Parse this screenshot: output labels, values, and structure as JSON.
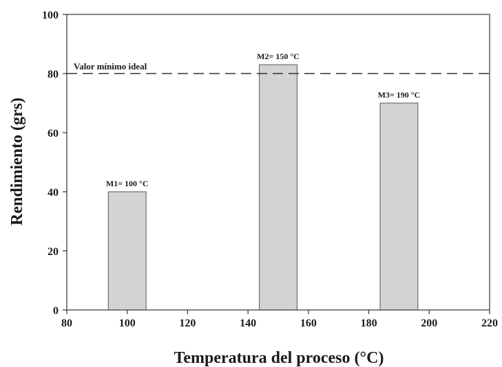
{
  "chart_data": {
    "type": "bar",
    "xlabel": "Temperatura del proceso (°C)",
    "ylabel": "Rendimiento (grs)",
    "xlim": [
      80,
      220
    ],
    "ylim": [
      0,
      100
    ],
    "x_ticks": [
      80,
      100,
      120,
      140,
      160,
      180,
      200,
      220
    ],
    "y_ticks": [
      0,
      20,
      40,
      60,
      80,
      100
    ],
    "bar_width": 12.5,
    "bars": [
      {
        "x": 100,
        "value": 40,
        "label": "M1= 100 °C"
      },
      {
        "x": 150,
        "value": 83,
        "label": "M2= 150 °C"
      },
      {
        "x": 190,
        "value": 70,
        "label": "M3= 190 °C"
      }
    ],
    "reference_line": {
      "value": 80,
      "label": "Valor mínimo ideal",
      "style": "dashed"
    },
    "grid": false,
    "bar_color": "#d3d3d3",
    "bar_edge_color": "#555555",
    "axis_color": "#333333"
  }
}
